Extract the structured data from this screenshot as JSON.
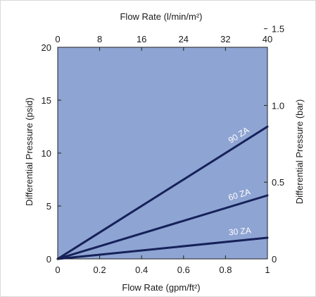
{
  "chart_data": {
    "type": "line",
    "xlabel": "Flow Rate (gpm/ft²)",
    "ylabel": "Differential Pressure (psid)",
    "x2label": "Flow Rate (l/min/m²)",
    "y2label": "Differential Pressure (bar)",
    "xlim": [
      0,
      1
    ],
    "ylim": [
      0,
      20
    ],
    "x2lim": [
      0,
      40
    ],
    "y2lim": [
      0,
      1.379
    ],
    "xticks": [
      "0",
      "0.2",
      "0.4",
      "0.6",
      "0.8",
      "1"
    ],
    "xtick_values": [
      0,
      0.2,
      0.4,
      0.6,
      0.8,
      1
    ],
    "yticks": [
      "0",
      "5",
      "10",
      "15",
      "20"
    ],
    "ytick_values": [
      0,
      5,
      10,
      15,
      20
    ],
    "x2ticks": [
      "0",
      "8",
      "16",
      "24",
      "32",
      "40"
    ],
    "x2tick_values": [
      0,
      8,
      16,
      24,
      32,
      40
    ],
    "y2ticks": [
      "0",
      "0.5",
      "1.0",
      "1.5"
    ],
    "y2tick_values": [
      0,
      0.5,
      1.0,
      1.5
    ],
    "grid": false,
    "series": [
      {
        "name": "90 ZA",
        "x": [
          0,
          1
        ],
        "y": [
          0,
          12.5
        ]
      },
      {
        "name": "60 ZA",
        "x": [
          0,
          1
        ],
        "y": [
          0,
          6.0
        ]
      },
      {
        "name": "30 ZA",
        "x": [
          0,
          1
        ],
        "y": [
          0,
          2.0
        ]
      }
    ],
    "colors": {
      "plot_bg": "#8ea4d2",
      "line": "#16215a",
      "label": "#ffffff",
      "border": "#222222",
      "frame": "#d9d9d9"
    }
  }
}
